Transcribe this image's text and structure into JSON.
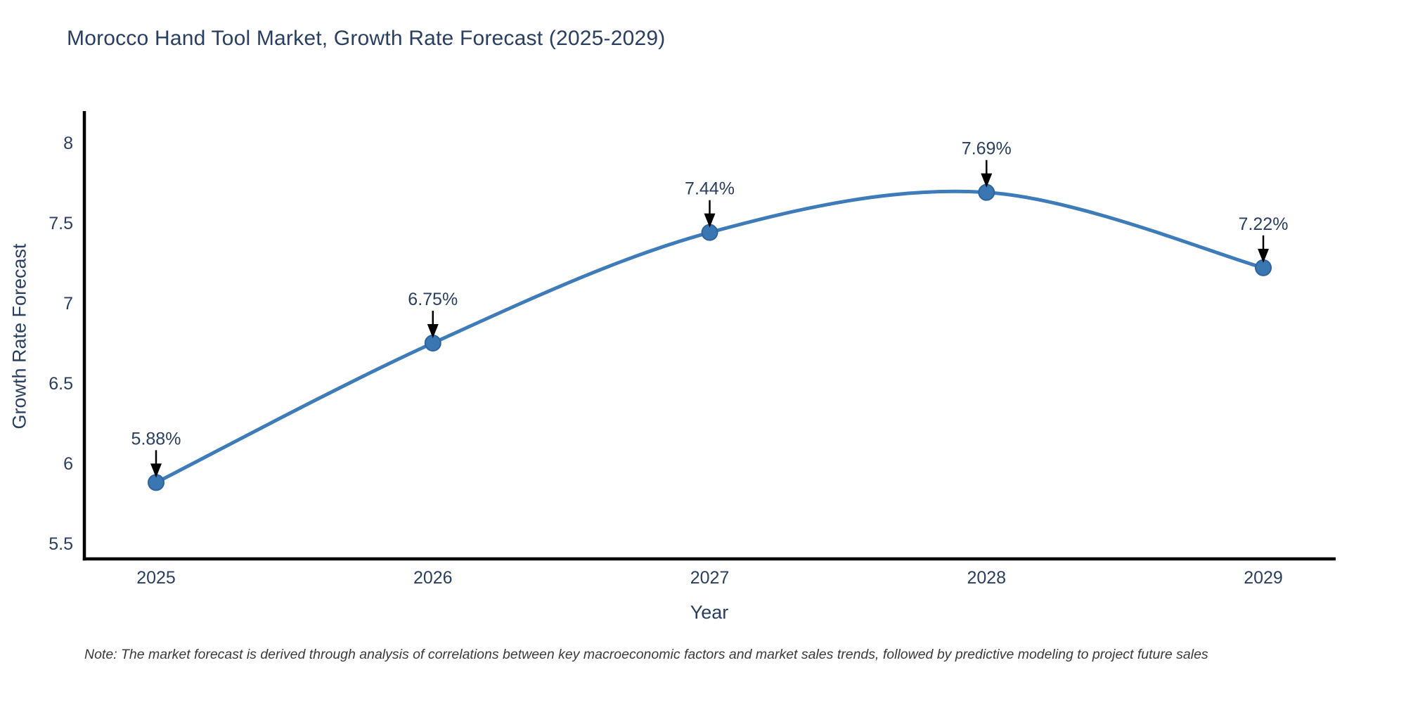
{
  "title": "Morocco Hand Tool Market, Growth Rate Forecast (2025-2029)",
  "note": "Note: The market forecast is derived through analysis of correlations between key macroeconomic factors and market sales trends, followed by predictive modeling to project future sales",
  "colors": {
    "line": "#3e7cb9",
    "marker_fill": "#3a76b2",
    "marker_edge": "#2f659e",
    "text": "#2a3f5f",
    "axis": "#000000",
    "arrow": "#000000",
    "note_text": "#3a3a3a"
  },
  "chart_data": {
    "type": "line",
    "title": "Morocco Hand Tool Market, Growth Rate Forecast (2025-2029)",
    "xlabel": "Year",
    "ylabel": "Growth Rate Forecast",
    "categories": [
      "2025",
      "2026",
      "2027",
      "2028",
      "2029"
    ],
    "values": [
      5.88,
      6.75,
      7.44,
      7.69,
      7.22
    ],
    "point_labels": [
      "5.88%",
      "6.75%",
      "7.44%",
      "7.69%",
      "7.22%"
    ],
    "ytick_values": [
      5.5,
      6,
      6.5,
      7,
      7.5,
      8
    ],
    "ytick_labels": [
      "5.5",
      "6",
      "6.5",
      "7",
      "7.5",
      "8"
    ],
    "ylim": [
      5.4,
      8.19
    ],
    "line_shape": "spline",
    "markers": true,
    "grid": false,
    "legend_position": "none",
    "annotation_style": "value-label-with-down-arrow"
  }
}
